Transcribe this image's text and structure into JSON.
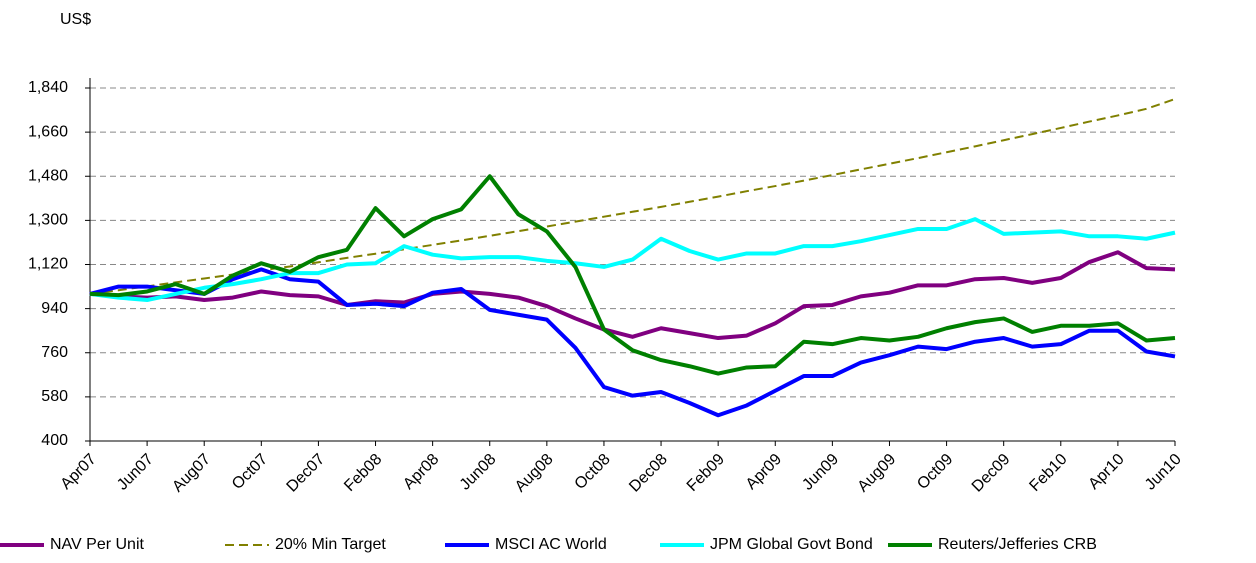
{
  "chart_data": {
    "type": "line",
    "y_label": "US$",
    "categories": [
      "Apr07",
      null,
      "Jun07",
      null,
      "Aug07",
      null,
      "Oct07",
      null,
      "Dec07",
      null,
      "Feb08",
      null,
      "Apr08",
      null,
      "Jun08",
      null,
      "Aug08",
      null,
      "Oct08",
      null,
      "Dec08",
      null,
      "Feb09",
      null,
      "Apr09",
      null,
      "Jun09",
      null,
      "Aug09",
      null,
      "Oct09",
      null,
      "Dec09",
      null,
      "Feb10",
      null,
      "Apr10",
      null,
      "Jun10"
    ],
    "ylim": [
      400,
      1840
    ],
    "yticks": [
      400,
      580,
      760,
      940,
      {
        "value": 1120,
        "label": "1,120"
      },
      {
        "value": 1300,
        "label": "1,300"
      },
      {
        "value": 1480,
        "label": "1,480"
      },
      {
        "value": 1660,
        "label": "1,660"
      },
      {
        "value": 1840,
        "label": "1,840"
      }
    ],
    "grid": true,
    "legend": "bottom",
    "series": [
      {
        "name": "NAV Per Unit",
        "color": "#800080",
        "style": "solid",
        "values": [
          1000,
          990,
          985,
          990,
          975,
          985,
          1010,
          995,
          990,
          955,
          970,
          965,
          1000,
          1010,
          1000,
          985,
          950,
          900,
          855,
          825,
          860,
          840,
          820,
          830,
          880,
          950,
          955,
          990,
          1005,
          1035,
          1035,
          1060,
          1065,
          1045,
          1065,
          1130,
          1170,
          1105,
          1100
        ]
      },
      {
        "name": "20% Min Target",
        "color": "#808000",
        "style": "dashed",
        "values": [
          1000,
          1015,
          1031,
          1047,
          1063,
          1079,
          1096,
          1112,
          1129,
          1147,
          1164,
          1182,
          1200,
          1218,
          1237,
          1256,
          1275,
          1295,
          1315,
          1335,
          1355,
          1376,
          1397,
          1419,
          1440,
          1462,
          1485,
          1508,
          1531,
          1554,
          1578,
          1602,
          1627,
          1652,
          1677,
          1703,
          1728,
          1755,
          1795
        ]
      },
      {
        "name": "MSCI AC World",
        "color": "#0000ff",
        "style": "solid",
        "values": [
          1000,
          1030,
          1030,
          1015,
          1000,
          1060,
          1100,
          1060,
          1050,
          955,
          960,
          950,
          1005,
          1020,
          935,
          915,
          895,
          780,
          620,
          585,
          600,
          555,
          505,
          545,
          605,
          665,
          665,
          720,
          750,
          785,
          775,
          805,
          820,
          785,
          795,
          850,
          850,
          765,
          745
        ]
      },
      {
        "name": "JPM Global Govt Bond",
        "color": "#00ffff",
        "style": "solid",
        "values": [
          1000,
          985,
          975,
          1000,
          1025,
          1040,
          1060,
          1085,
          1085,
          1120,
          1125,
          1195,
          1160,
          1145,
          1150,
          1150,
          1135,
          1125,
          1110,
          1140,
          1225,
          1175,
          1140,
          1165,
          1165,
          1195,
          1195,
          1215,
          1240,
          1265,
          1265,
          1305,
          1245,
          1250,
          1255,
          1235,
          1235,
          1225,
          1250
        ]
      },
      {
        "name": "Reuters/Jefferies CRB",
        "color": "#008000",
        "style": "solid",
        "values": [
          1000,
          995,
          1010,
          1040,
          1000,
          1075,
          1125,
          1090,
          1150,
          1180,
          1350,
          1235,
          1305,
          1345,
          1480,
          1325,
          1255,
          1110,
          855,
          770,
          730,
          705,
          675,
          700,
          705,
          805,
          795,
          820,
          810,
          825,
          860,
          885,
          900,
          845,
          870,
          870,
          880,
          810,
          820
        ]
      }
    ]
  }
}
